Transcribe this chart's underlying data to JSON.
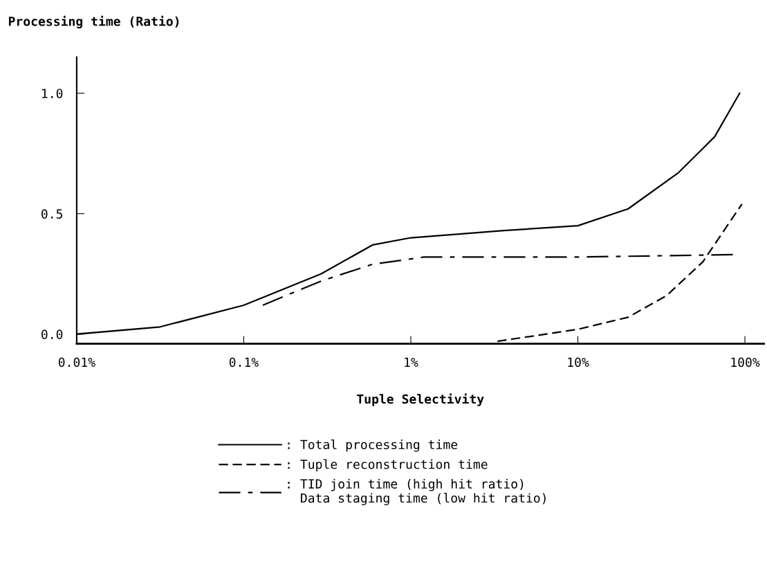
{
  "chart_data": {
    "type": "line",
    "ylabel": "Processing time (Ratio)",
    "xlabel": "Tuple Selectivity",
    "log": "x",
    "xlim": [
      0.01,
      130
    ],
    "ylim": [
      -0.04,
      1.15
    ],
    "xticks": [
      {
        "value": 0.01,
        "label": "0.01%"
      },
      {
        "value": 0.1,
        "label": "0.1%"
      },
      {
        "value": 1,
        "label": "1%"
      },
      {
        "value": 10,
        "label": "10%"
      },
      {
        "value": 100,
        "label": "100%"
      }
    ],
    "yticks": [
      {
        "value": 0,
        "label": "0.0"
      },
      {
        "value": 0.5,
        "label": "0.5"
      },
      {
        "value": 1,
        "label": "1.0"
      }
    ],
    "grid": false,
    "legend": "bottom",
    "marker": "none",
    "series": [
      {
        "name": ": Total processing time",
        "color": "#000000",
        "line_style": "solid",
        "x": [
          0.01,
          0.0316,
          0.1,
          0.29,
          0.59,
          1,
          3.6,
          10,
          20,
          40,
          66,
          93
        ],
        "values": [
          0.0,
          0.03,
          0.12,
          0.25,
          0.37,
          0.4,
          0.43,
          0.45,
          0.52,
          0.67,
          0.82,
          1.0
        ]
      },
      {
        "name": ": Tuple reconstruction time",
        "color": "#000000",
        "line_style": "dashed",
        "x": [
          3.3,
          10,
          20,
          34,
          56,
          96
        ],
        "values": [
          -0.03,
          0.02,
          0.07,
          0.16,
          0.3,
          0.54
        ]
      },
      {
        "name": ": TID join time (high hit ratio)\n  Data staging time (low hit ratio)",
        "color": "#000000",
        "line_style": "dashdot",
        "x": [
          0.13,
          0.29,
          0.59,
          0.95,
          1.2,
          10,
          87
        ],
        "values": [
          0.12,
          0.22,
          0.29,
          0.31,
          0.32,
          0.32,
          0.33
        ]
      }
    ]
  }
}
